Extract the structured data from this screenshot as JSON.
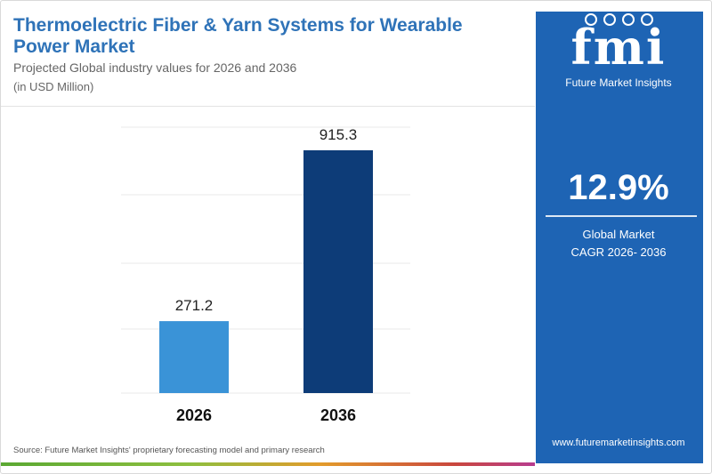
{
  "header": {
    "title": "Thermoelectric Fiber & Yarn Systems for Wearable Power Market",
    "subtitle": "Projected Global industry values for 2026 and 2036",
    "unit": "(in USD Million)"
  },
  "chart_data": {
    "type": "bar",
    "title": "Thermoelectric Fiber & Yarn Systems for Wearable Power Market",
    "subtitle": "Projected Global industry values for 2026 and 2036",
    "ylabel": "(in USD Million)",
    "categories": [
      "2026",
      "2036"
    ],
    "values": [
      271.2,
      915.3
    ],
    "value_labels": [
      "271.2",
      "915.3"
    ],
    "bar_colors": [
      "#3a93d7",
      "#0d3c78"
    ],
    "ylim": [
      0,
      1000
    ],
    "grid": true,
    "legend": "none"
  },
  "source": "Source: Future Market Insights' proprietary forecasting model and primary research",
  "sidebar": {
    "logo_mark": "fmi",
    "logo_name": "Future Market Insights",
    "cagr_value": "12.9%",
    "cagr_label_line1": "Global Market",
    "cagr_label_line2": "CAGR 2026- 2036",
    "website": "www.futuremarketinsights.com"
  },
  "colors": {
    "title": "#2f73b8",
    "sidebar": "#1e64b4",
    "bar_2026": "#3a93d7",
    "bar_2036": "#0d3c78"
  }
}
